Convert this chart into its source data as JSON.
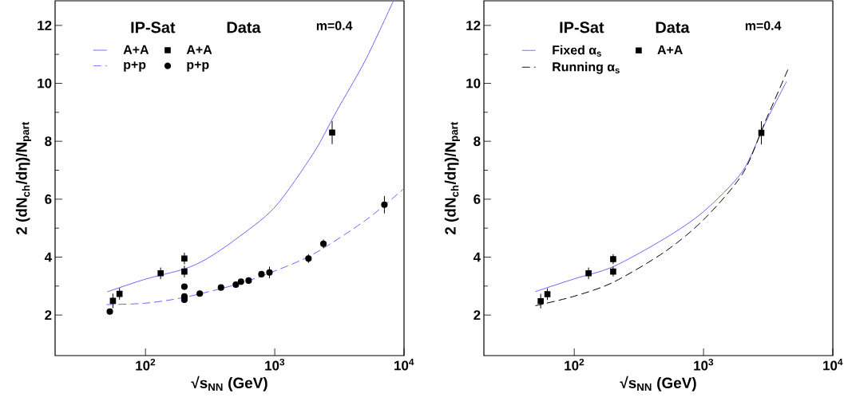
{
  "chart_data": [
    {
      "type": "scatter",
      "xlabel": "√s$_{NN}$ (GeV)",
      "ylabel": "2 (dN$_{ch}$/dη)/N$_{part}$",
      "log": "x",
      "legend": "top left",
      "xlim": [
        20,
        10000
      ],
      "ylim": [
        0.6,
        12.85
      ],
      "xticks": [
        {
          "value": 100,
          "label": "10$^{2}$"
        },
        {
          "value": 1000,
          "label": "10$^{3}$"
        },
        {
          "value": 10000,
          "label": "10$^{4}$"
        }
      ],
      "yticks": [
        2,
        4,
        6,
        8,
        10,
        12
      ],
      "annotations": [
        "IP-Sat",
        "Data",
        "m=0.4"
      ],
      "series": [
        {
          "name": "A+A",
          "type": "line",
          "color": "#6666ff",
          "line_style": "solid",
          "marker": "none",
          "x": [
            50.6,
            100,
            200,
            300,
            500,
            1000,
            2000,
            3000,
            5000,
            8280
          ],
          "values": [
            2.8,
            3.24,
            3.59,
            3.95,
            4.62,
            5.72,
            7.6,
            9.03,
            10.78,
            12.85
          ]
        },
        {
          "name": "A+A",
          "color": "#000000",
          "marker": "square",
          "x": [
            56,
            63,
            131,
            200,
            200,
            2780
          ],
          "values": [
            2.49,
            2.73,
            3.44,
            3.5,
            3.95,
            8.3
          ],
          "errors": [
            0.25,
            0.2,
            0.2,
            0.2,
            0.2,
            0.4
          ]
        },
        {
          "name": "p+p",
          "type": "line",
          "color": "#6666ff",
          "line_style": "dashed",
          "marker": "none",
          "x": [
            50,
            100,
            200,
            500,
            1000,
            2000,
            5000,
            10000
          ],
          "values": [
            2.36,
            2.41,
            2.61,
            3.05,
            3.52,
            4.11,
            5.26,
            6.37
          ]
        },
        {
          "name": "p+p",
          "color": "#000000",
          "marker": "circle",
          "x": [
            53,
            200,
            200,
            200,
            263,
            384,
            500,
            548,
            628,
            789,
            910,
            1824,
            2380,
            7050
          ],
          "values": [
            2.12,
            2.98,
            2.64,
            2.53,
            2.74,
            2.95,
            3.05,
            3.15,
            3.19,
            3.41,
            3.47,
            3.95,
            4.46,
            5.81
          ],
          "errors": [
            null,
            null,
            null,
            null,
            null,
            null,
            null,
            null,
            null,
            null,
            0.2,
            0.15,
            0.15,
            0.3
          ]
        }
      ]
    },
    {
      "type": "scatter",
      "xlabel": "√s$_{NN}$ (GeV)",
      "ylabel": "2 (dN$_{ch}$/dη)/N$_{part}$",
      "log": "x",
      "legend": "top left",
      "xlim": [
        20,
        10000
      ],
      "ylim": [
        0.6,
        12.85
      ],
      "xticks": [
        {
          "value": 100,
          "label": "10$^{2}$"
        },
        {
          "value": 1000,
          "label": "10$^{3}$"
        },
        {
          "value": 10000,
          "label": "10$^{4}$"
        }
      ],
      "yticks": [
        2,
        4,
        6,
        8,
        10,
        12
      ],
      "annotations": [
        "IP-Sat",
        "Data",
        "m=0.4"
      ],
      "series": [
        {
          "name": "Fixed α$_{s}$",
          "type": "line",
          "color": "#6666ff",
          "line_style": "solid",
          "marker": "none",
          "x": [
            50,
            100,
            200,
            500,
            1000,
            2000,
            3000,
            4390
          ],
          "values": [
            2.81,
            3.25,
            3.67,
            4.64,
            5.57,
            6.96,
            8.63,
            10.07
          ]
        },
        {
          "name": "A+A",
          "color": "#000000",
          "marker": "square",
          "x": [
            55,
            62,
            129,
            200,
            200,
            2800
          ],
          "values": [
            2.48,
            2.72,
            3.44,
            3.5,
            3.93,
            8.29
          ],
          "errors": [
            0.25,
            0.2,
            0.2,
            0.17,
            0.17,
            0.4
          ]
        },
        {
          "name": "Running α$_{s}$",
          "type": "line",
          "color": "#000000",
          "line_style": "dashed",
          "marker": "none",
          "x": [
            50,
            100,
            200,
            500,
            1000,
            2000,
            3000,
            4530
          ],
          "values": [
            2.32,
            2.65,
            3.13,
            4.18,
            5.29,
            6.87,
            8.68,
            10.51
          ]
        }
      ]
    }
  ]
}
